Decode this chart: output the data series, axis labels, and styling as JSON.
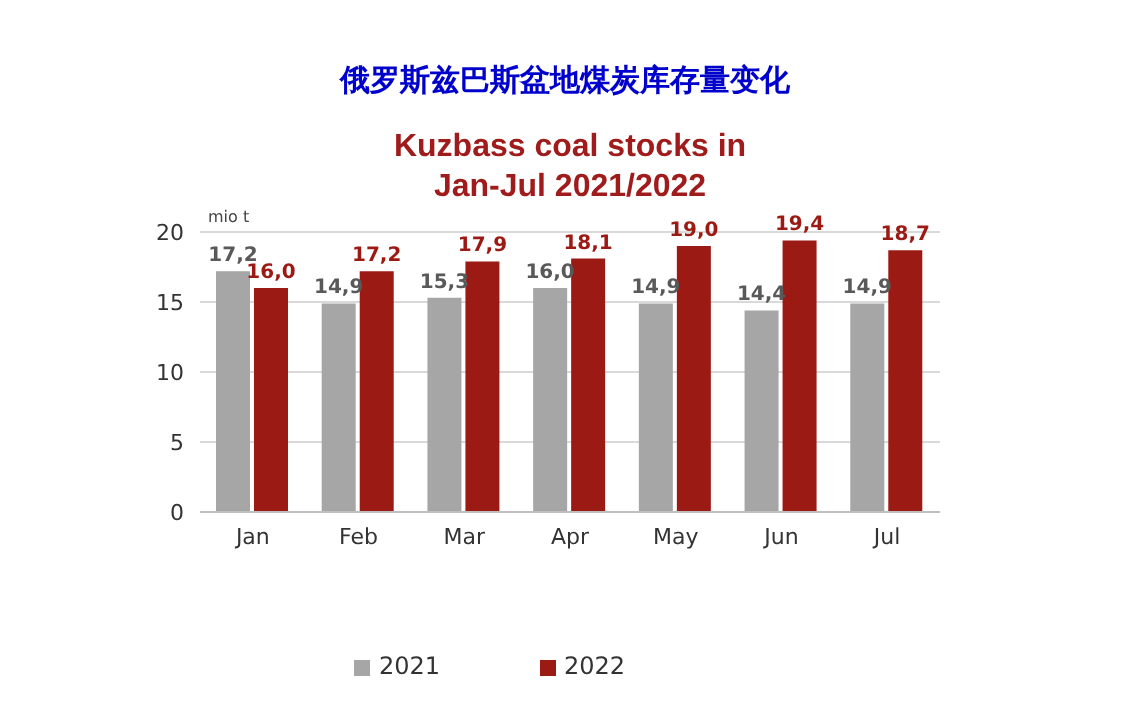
{
  "chart_data": {
    "type": "bar",
    "title": "俄罗斯兹巴斯盆地煤炭库存量变化",
    "subtitle": "Kuzbass coal stocks in Jan-Jul 2021/2022",
    "ylabel": "mio t",
    "categories": [
      "Jan",
      "Feb",
      "Mar",
      "Apr",
      "May",
      "Jun",
      "Jul"
    ],
    "series": [
      {
        "name": "2021",
        "color": "#a6a6a6",
        "values": [
          17.2,
          14.9,
          15.3,
          16.0,
          14.9,
          14.4,
          14.9
        ],
        "value_labels": [
          "17,2",
          "14,9",
          "15,3",
          "16,0",
          "14,9",
          "14,4",
          "14,9"
        ]
      },
      {
        "name": "2022",
        "color": "#9c1a14",
        "values": [
          16.0,
          17.2,
          17.9,
          18.1,
          19.0,
          19.4,
          18.7
        ],
        "value_labels": [
          "16,0",
          "17,2",
          "17,9",
          "18,1",
          "19,0",
          "19,4",
          "18,7"
        ]
      }
    ],
    "ylim": [
      0,
      20
    ],
    "yticks": [
      0,
      5,
      10,
      15,
      20
    ],
    "grid": "y",
    "legend": "bottom"
  }
}
